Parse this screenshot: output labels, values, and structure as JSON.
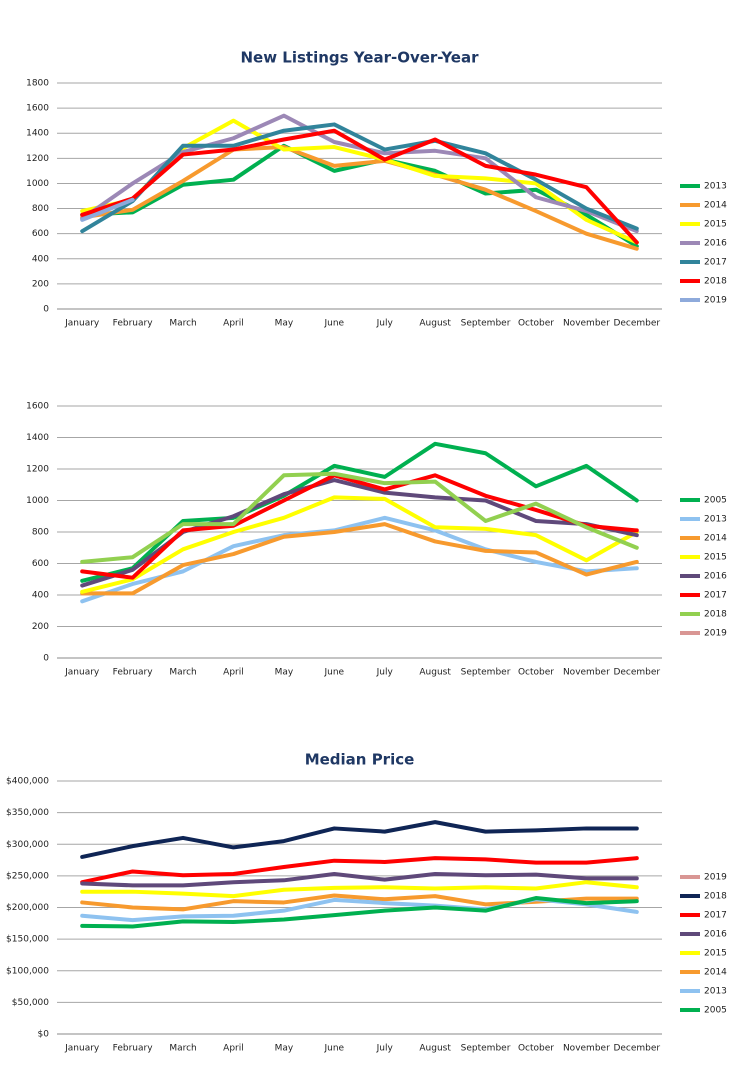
{
  "chart_data": [
    {
      "type": "line",
      "title": "New Listings Year-Over-Year",
      "categories": [
        "January",
        "February",
        "March",
        "April",
        "May",
        "June",
        "July",
        "August",
        "September",
        "October",
        "November",
        "December"
      ],
      "ylim": [
        0,
        1800
      ],
      "yticks": [
        0,
        200,
        400,
        600,
        800,
        1000,
        1200,
        1400,
        1600,
        1800
      ],
      "grid": true,
      "legend": "right",
      "series": [
        {
          "name": "2013",
          "color": "#00b050",
          "values": [
            750,
            770,
            990,
            1030,
            1300,
            1100,
            1190,
            1100,
            920,
            950,
            750,
            500
          ]
        },
        {
          "name": "2014",
          "color": "#f79a2e",
          "values": [
            730,
            790,
            1020,
            1270,
            1290,
            1140,
            1180,
            1070,
            950,
            780,
            600,
            480
          ]
        },
        {
          "name": "2015",
          "color": "#ffff00",
          "values": [
            780,
            870,
            1280,
            1500,
            1270,
            1290,
            1190,
            1060,
            1040,
            1000,
            710,
            530
          ]
        },
        {
          "name": "2016",
          "color": "#9c88b6",
          "values": [
            720,
            1000,
            1250,
            1360,
            1540,
            1330,
            1240,
            1260,
            1200,
            890,
            780,
            620
          ]
        },
        {
          "name": "2017",
          "color": "#31849b",
          "values": [
            620,
            860,
            1300,
            1300,
            1420,
            1470,
            1270,
            1340,
            1240,
            1030,
            800,
            640
          ]
        },
        {
          "name": "2018",
          "color": "#ff0000",
          "values": [
            750,
            880,
            1230,
            1270,
            1350,
            1420,
            1190,
            1350,
            1140,
            1070,
            970,
            530
          ]
        },
        {
          "name": "2019",
          "color": "#8eaadb",
          "values": [
            710,
            870,
            null,
            null,
            null,
            null,
            null,
            null,
            null,
            null,
            null,
            null
          ]
        }
      ]
    },
    {
      "type": "line",
      "categories": [
        "January",
        "February",
        "March",
        "April",
        "May",
        "June",
        "July",
        "August",
        "September",
        "October",
        "November",
        "December"
      ],
      "ylim": [
        0,
        1600
      ],
      "yticks": [
        0,
        200,
        400,
        600,
        800,
        1000,
        1200,
        1400,
        1600
      ],
      "grid": true,
      "legend": "right",
      "series": [
        {
          "name": "2005",
          "color": "#00b050",
          "values": [
            490,
            570,
            870,
            890,
            1030,
            1220,
            1150,
            1360,
            1300,
            1090,
            1220,
            1000
          ]
        },
        {
          "name": "2013",
          "color": "#8ec2f0",
          "values": [
            360,
            470,
            550,
            710,
            780,
            810,
            890,
            810,
            690,
            610,
            550,
            570
          ]
        },
        {
          "name": "2014",
          "color": "#f79a2e",
          "values": [
            410,
            410,
            590,
            660,
            770,
            800,
            850,
            740,
            680,
            670,
            530,
            610
          ]
        },
        {
          "name": "2015",
          "color": "#ffff00",
          "values": [
            420,
            500,
            690,
            800,
            890,
            1020,
            1010,
            830,
            820,
            780,
            620,
            800
          ]
        },
        {
          "name": "2016",
          "color": "#5f497a",
          "values": [
            460,
            560,
            800,
            900,
            1040,
            1130,
            1050,
            1020,
            1000,
            870,
            850,
            780
          ]
        },
        {
          "name": "2017",
          "color": "#ff0000",
          "values": [
            550,
            510,
            810,
            840,
            1000,
            1160,
            1070,
            1160,
            1030,
            940,
            840,
            810
          ]
        },
        {
          "name": "2018",
          "color": "#92d050",
          "values": [
            610,
            640,
            850,
            850,
            1160,
            1170,
            1110,
            1120,
            870,
            980,
            830,
            700
          ]
        },
        {
          "name": "2019",
          "color": "#d99694",
          "values": [
            null,
            null,
            null,
            null,
            null,
            null,
            null,
            null,
            null,
            null,
            null,
            null
          ]
        }
      ]
    },
    {
      "type": "line",
      "title": "Median Price",
      "categories": [
        "January",
        "February",
        "March",
        "April",
        "May",
        "June",
        "July",
        "August",
        "September",
        "October",
        "November",
        "December"
      ],
      "ylim": [
        0,
        400000
      ],
      "yticks": [
        {
          "value": 0,
          "label": "$0"
        },
        {
          "value": 50000,
          "label": "$50,000"
        },
        {
          "value": 100000,
          "label": "$100,000"
        },
        {
          "value": 150000,
          "label": "$150,000"
        },
        {
          "value": 200000,
          "label": "$200,000"
        },
        {
          "value": 250000,
          "label": "$250,000"
        },
        {
          "value": 300000,
          "label": "$300,000"
        },
        {
          "value": 350000,
          "label": "$350,000"
        },
        {
          "value": 400000,
          "label": "$400,000"
        }
      ],
      "grid": true,
      "legend": "right",
      "series": [
        {
          "name": "2019",
          "color": "#d99694",
          "values": [
            null,
            null,
            null,
            null,
            null,
            null,
            null,
            null,
            null,
            null,
            null,
            null
          ]
        },
        {
          "name": "2018",
          "color": "#0f2555",
          "values": [
            280000,
            297000,
            310000,
            295000,
            305000,
            325000,
            320000,
            335000,
            320000,
            322000,
            325000,
            325000
          ]
        },
        {
          "name": "2017",
          "color": "#ff0000",
          "values": [
            240000,
            257000,
            251000,
            253000,
            264000,
            274000,
            272000,
            278000,
            276000,
            271000,
            271000,
            278000
          ]
        },
        {
          "name": "2016",
          "color": "#5f497a",
          "values": [
            238000,
            235000,
            235000,
            240000,
            243000,
            253000,
            244000,
            253000,
            251000,
            252000,
            246000,
            246000
          ]
        },
        {
          "name": "2015",
          "color": "#ffff00",
          "values": [
            225000,
            225000,
            222000,
            218000,
            228000,
            231000,
            232000,
            230000,
            232000,
            230000,
            240000,
            232000
          ]
        },
        {
          "name": "2014",
          "color": "#f79a2e",
          "values": [
            208000,
            200000,
            197000,
            210000,
            208000,
            219000,
            213000,
            218000,
            205000,
            209000,
            214000,
            214000
          ]
        },
        {
          "name": "2013",
          "color": "#8ec2f0",
          "values": [
            187000,
            180000,
            186000,
            187000,
            195000,
            212000,
            207000,
            203000,
            197000,
            213000,
            205000,
            193000
          ]
        },
        {
          "name": "2005",
          "color": "#00b050",
          "values": [
            171000,
            170000,
            178000,
            177000,
            181000,
            188000,
            195000,
            200000,
            195000,
            215000,
            207000,
            210000
          ]
        }
      ]
    }
  ]
}
